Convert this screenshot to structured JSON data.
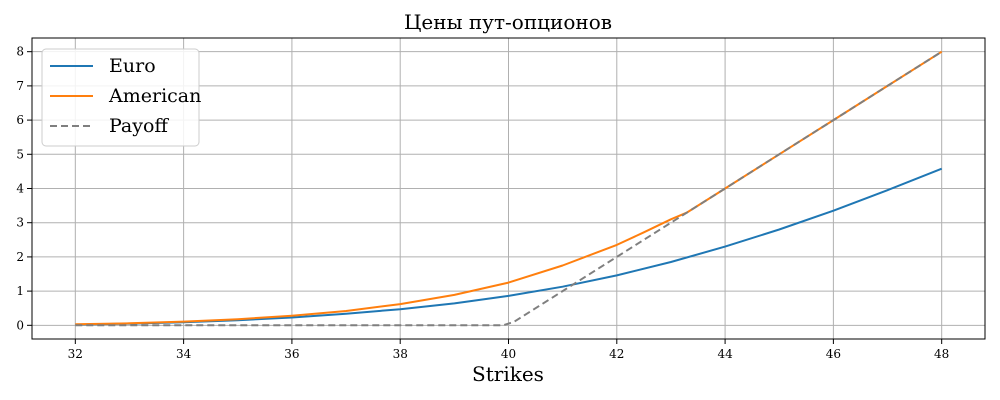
{
  "chart_data": {
    "type": "line",
    "title": "Цены пут-опционов",
    "xlabel": "Strikes",
    "ylabel": "",
    "xlim": [
      31.2,
      48.8
    ],
    "ylim": [
      -0.4,
      8.4
    ],
    "xticks": [
      32,
      34,
      36,
      38,
      40,
      42,
      44,
      46,
      48
    ],
    "yticks": [
      0,
      1,
      2,
      3,
      4,
      5,
      6,
      7,
      8
    ],
    "grid": true,
    "legend_position": "top-left",
    "series": [
      {
        "name": "Euro",
        "color": "#1f77b4",
        "style": "solid",
        "x": [
          32,
          33,
          34,
          35,
          36,
          37,
          38,
          39,
          40,
          41,
          42,
          43,
          44,
          45,
          46,
          47,
          48
        ],
        "y": [
          0.02,
          0.05,
          0.09,
          0.15,
          0.23,
          0.34,
          0.47,
          0.64,
          0.86,
          1.13,
          1.46,
          1.85,
          2.3,
          2.8,
          3.35,
          3.95,
          4.58
        ]
      },
      {
        "name": "American",
        "color": "#ff7f0e",
        "style": "solid",
        "x": [
          32,
          33,
          34,
          35,
          36,
          37,
          38,
          39,
          40,
          41,
          42,
          42.5,
          43,
          43.3,
          44,
          45,
          46,
          47,
          48
        ],
        "y": [
          0.03,
          0.06,
          0.11,
          0.18,
          0.28,
          0.42,
          0.62,
          0.89,
          1.25,
          1.75,
          2.35,
          2.72,
          3.1,
          3.3,
          4.0,
          5.0,
          6.0,
          7.0,
          8.0
        ]
      },
      {
        "name": "Payoff",
        "color": "#7f7f7f",
        "style": "dashed",
        "x": [
          32,
          33,
          34,
          35,
          36,
          37,
          38,
          39,
          39.9,
          40.1,
          41,
          42,
          43,
          44,
          45,
          46,
          47,
          48
        ],
        "y": [
          0,
          0,
          0,
          0,
          0,
          0,
          0,
          0,
          0,
          0.1,
          1.0,
          2.0,
          3.0,
          4.0,
          5.0,
          6.0,
          7.0,
          8.0
        ]
      }
    ]
  }
}
